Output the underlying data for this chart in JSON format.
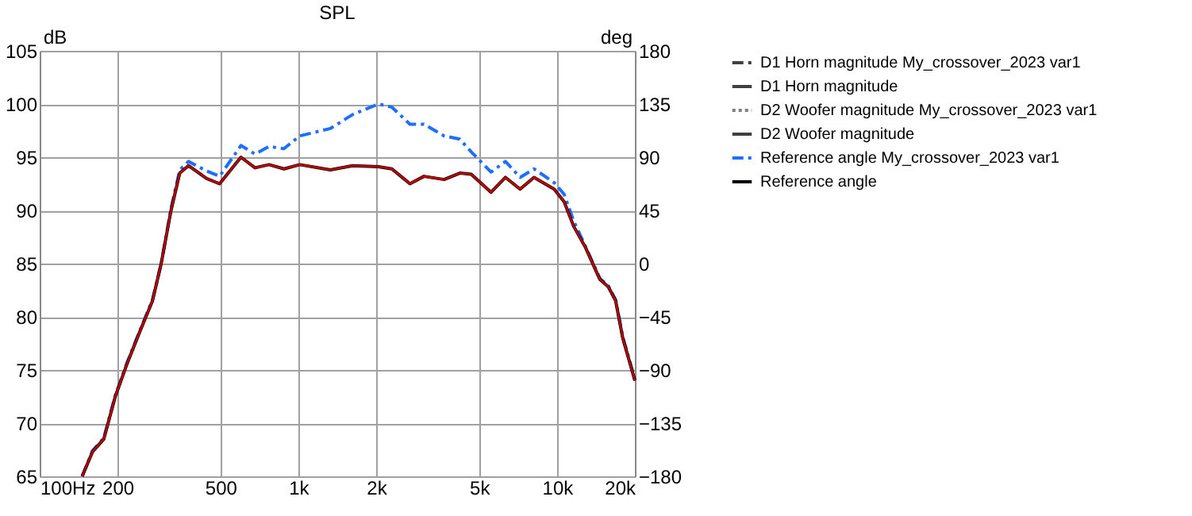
{
  "chart_data": {
    "type": "line",
    "title": "SPL",
    "ylabel": "dB",
    "y2label": "deg",
    "xlim": [
      100,
      20000
    ],
    "xticks": [
      {
        "value": 100,
        "label": "100Hz"
      },
      200,
      500,
      {
        "value": 1000,
        "label": "1k"
      },
      {
        "value": 2000,
        "label": "2k"
      },
      {
        "value": 5000,
        "label": "5k"
      },
      {
        "value": 10000,
        "label": "10k"
      },
      {
        "value": 20000,
        "label": "20k"
      }
    ],
    "ylim": [
      65,
      105
    ],
    "yticks": [
      65,
      70,
      75,
      80,
      85,
      90,
      95,
      100,
      105
    ],
    "y2lim": [
      -180,
      180
    ],
    "y2ticks": [
      -180,
      -135,
      -90,
      -45,
      0,
      45,
      90,
      135,
      180
    ],
    "log": "x",
    "grid": true,
    "legend": "right",
    "x": [
      146,
      160,
      177,
      196,
      217,
      243,
      273,
      295,
      322,
      348,
      376,
      442,
      496,
      600,
      680,
      770,
      880,
      1013,
      1330,
      1620,
      2040,
      2300,
      2700,
      3060,
      3660,
      4210,
      4660,
      5560,
      6320,
      7200,
      8150,
      9750,
      10660,
      11600,
      12890,
      14650,
      15800,
      16850,
      17950,
      20000
    ],
    "series": [
      {
        "name": "D1 Horn magnitude My_crossover_2023 var1",
        "color": "#404040",
        "line_style": "dashed",
        "values": [
          null,
          null,
          null,
          null,
          null,
          null,
          null,
          null,
          null,
          null,
          null,
          null,
          null,
          null,
          null,
          null,
          null,
          null,
          null,
          null,
          null,
          null,
          null,
          null,
          null,
          null,
          null,
          null,
          null,
          null,
          null,
          null,
          null,
          null,
          null,
          null,
          null,
          null,
          null,
          null
        ]
      },
      {
        "name": "D1 Horn magnitude",
        "color": "#404040",
        "line_style": "solid",
        "values": [
          null,
          null,
          null,
          null,
          null,
          null,
          null,
          null,
          null,
          null,
          null,
          null,
          null,
          null,
          null,
          null,
          null,
          null,
          null,
          null,
          null,
          null,
          null,
          null,
          null,
          null,
          null,
          null,
          null,
          null,
          null,
          null,
          null,
          null,
          null,
          null,
          null,
          null,
          null,
          null
        ]
      },
      {
        "name": "D2 Woofer magnitude My_crossover_2023 var1",
        "color": "#808080",
        "line_style": "dotted",
        "values": [
          null,
          null,
          null,
          null,
          null,
          null,
          null,
          null,
          null,
          null,
          null,
          null,
          null,
          null,
          null,
          null,
          null,
          null,
          null,
          null,
          null,
          null,
          null,
          null,
          null,
          null,
          null,
          null,
          null,
          null,
          null,
          null,
          null,
          null,
          null,
          null,
          null,
          null,
          null,
          null
        ]
      },
      {
        "name": "D2 Woofer magnitude",
        "color": "#404040",
        "line_style": "solid",
        "values": [
          null,
          null,
          null,
          null,
          null,
          null,
          null,
          null,
          null,
          null,
          null,
          null,
          null,
          null,
          null,
          null,
          null,
          null,
          null,
          null,
          null,
          null,
          null,
          null,
          null,
          null,
          null,
          null,
          null,
          null,
          null,
          null,
          null,
          null,
          null,
          null,
          null,
          null,
          null,
          null
        ]
      },
      {
        "name": "Reference angle My_crossover_2023 var1",
        "color": "#1e6fff",
        "line_style": "dashed",
        "values": [
          65,
          67.4,
          68.6,
          72.6,
          75.6,
          78.6,
          81.6,
          85,
          90.2,
          93.8,
          94.6,
          93.7,
          93.2,
          96.1,
          95.3,
          96,
          95.8,
          97,
          97.7,
          99,
          100,
          99.7,
          98.1,
          98.1,
          97,
          96.7,
          95.5,
          93.6,
          94.6,
          93.1,
          93.9,
          92.6,
          91.5,
          89,
          86.6,
          83.6,
          82.9,
          81.6,
          78.1,
          74.1
        ]
      },
      {
        "name": "Reference angle",
        "color": "#000000",
        "line_style": "solid",
        "values": [
          65,
          67.3,
          68.5,
          72.5,
          75.5,
          78.5,
          81.5,
          85,
          90,
          93.5,
          94.2,
          93,
          92.5,
          95,
          94,
          94.3,
          93.9,
          94.3,
          93.8,
          94.2,
          94.1,
          93.9,
          92.5,
          93.2,
          92.9,
          93.5,
          93.4,
          91.7,
          93.1,
          92,
          93.1,
          92,
          90.8,
          88.5,
          86.5,
          83.5,
          82.8,
          81.5,
          78,
          74
        ]
      },
      {
        "color": "#c00000",
        "line_style": "solid",
        "values": [
          65,
          67.3,
          68.5,
          72.5,
          75.5,
          78.5,
          81.5,
          85,
          90,
          93.5,
          94.2,
          93,
          92.5,
          95,
          94,
          94.3,
          93.9,
          94.3,
          93.8,
          94.2,
          94.1,
          93.9,
          92.5,
          93.2,
          92.9,
          93.5,
          93.4,
          91.7,
          93.1,
          92,
          93.1,
          92,
          90.8,
          88.5,
          86.5,
          83.5,
          82.8,
          81.5,
          78,
          74
        ]
      }
    ]
  }
}
